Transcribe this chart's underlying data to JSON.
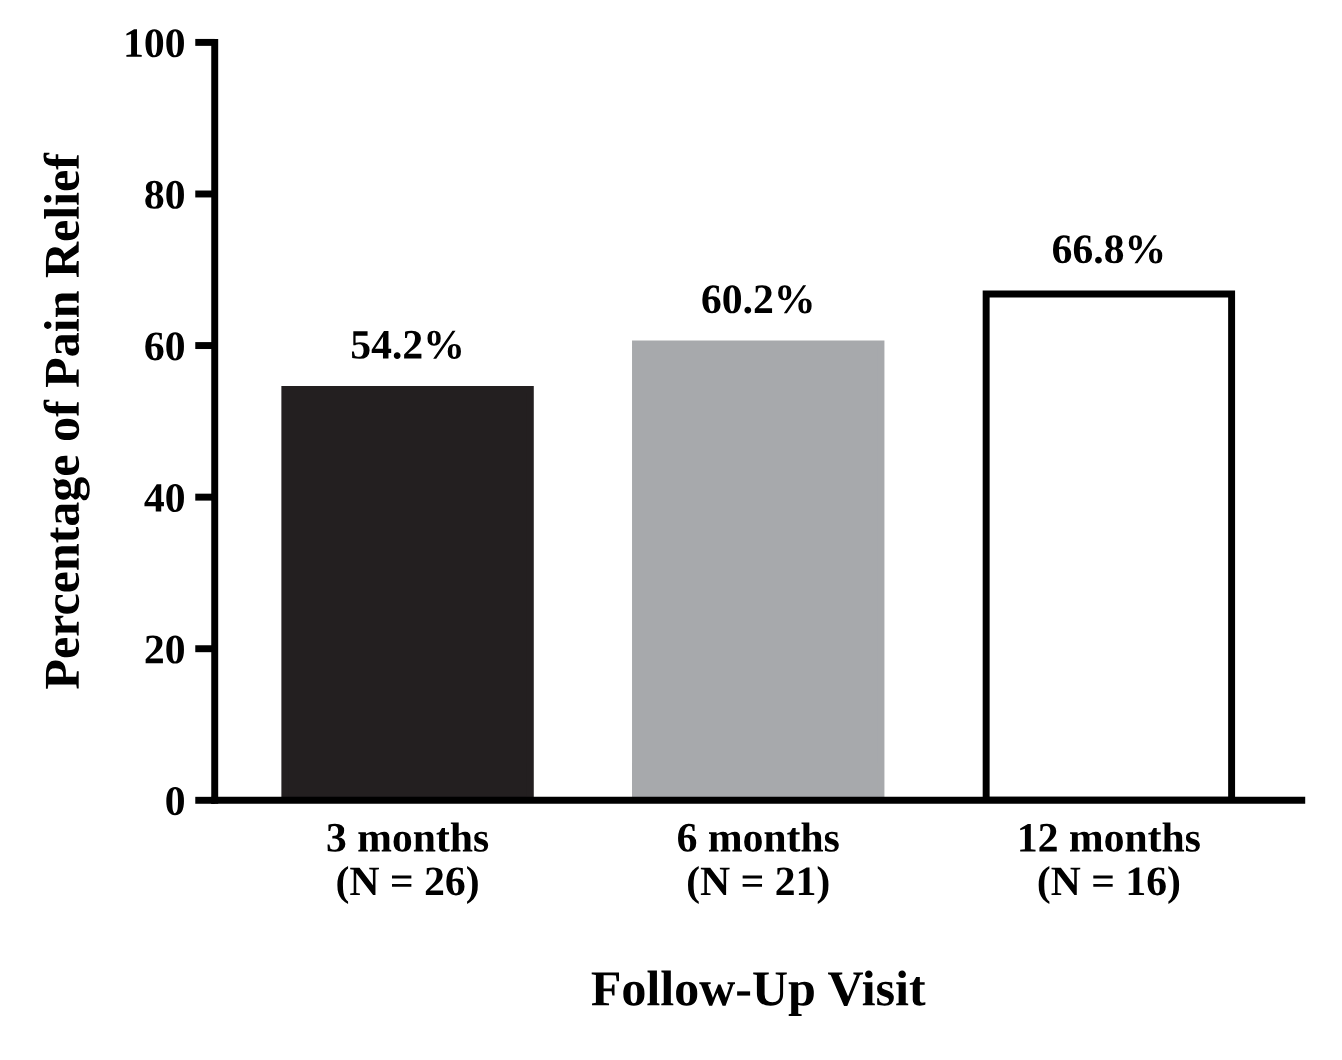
{
  "chart_data": {
    "type": "bar",
    "xlabel": "Follow-Up Visit",
    "ylabel": "Percentage of Pain Relief",
    "categories": [
      "3 months\n(N = 26)",
      "6 months\n(N = 21)",
      "12 months\n(N = 16)"
    ],
    "values": [
      54.2,
      60.2,
      66.8
    ],
    "colors": [
      "#231f20",
      "#a7a9ac",
      "#ffffff"
    ],
    "value_labels": [
      "54.2%",
      "60.2%",
      "66.8%"
    ],
    "ylim": [
      0,
      100
    ],
    "yticks": [
      0,
      20,
      40,
      60,
      80,
      100
    ],
    "grid": false,
    "legend": false
  }
}
